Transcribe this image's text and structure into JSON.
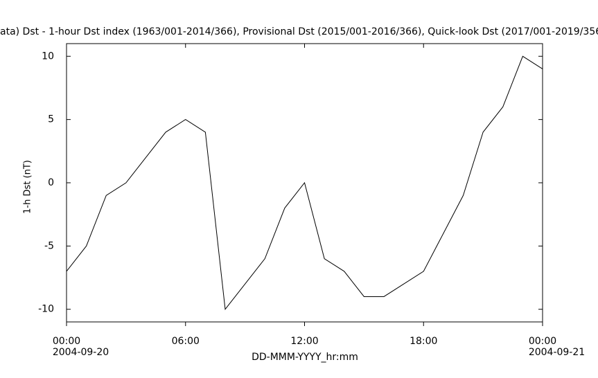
{
  "chart_data": {
    "type": "line",
    "title": "ata)  Dst - 1-hour Dst index (1963/001-2014/366), Provisional Dst (2015/001-2016/366), Quick-look Dst (2017/001-2019/356",
    "x_label": "DD-MMM-YYYY_hr:mm",
    "y_label": "1-h Dst (nT)",
    "x": [
      0,
      1,
      2,
      3,
      4,
      5,
      6,
      7,
      8,
      9,
      10,
      11,
      12,
      13,
      14,
      15,
      16,
      17,
      18,
      19,
      20,
      21,
      22,
      23,
      24
    ],
    "series": [
      {
        "name": "1-h Dst",
        "color": "#000000",
        "values": [
          -7,
          -5,
          -1,
          0,
          2,
          4,
          5,
          4,
          -10,
          -8,
          -6,
          -2,
          0,
          -6,
          -7,
          -9,
          -9,
          -8,
          -7,
          -4,
          -1,
          4,
          6,
          10,
          9
        ]
      }
    ],
    "xlim": [
      0,
      24
    ],
    "xticks": [
      {
        "value": 0,
        "label": "00:00",
        "date": "2004-09-20"
      },
      {
        "value": 6,
        "label": "06:00"
      },
      {
        "value": 12,
        "label": "12:00"
      },
      {
        "value": 18,
        "label": "18:00"
      },
      {
        "value": 24,
        "label": "00:00",
        "date": "2004-09-21"
      }
    ],
    "ylim": [
      -11,
      11
    ],
    "yticks": [
      10,
      5,
      0,
      -5,
      -10
    ],
    "grid": false
  }
}
